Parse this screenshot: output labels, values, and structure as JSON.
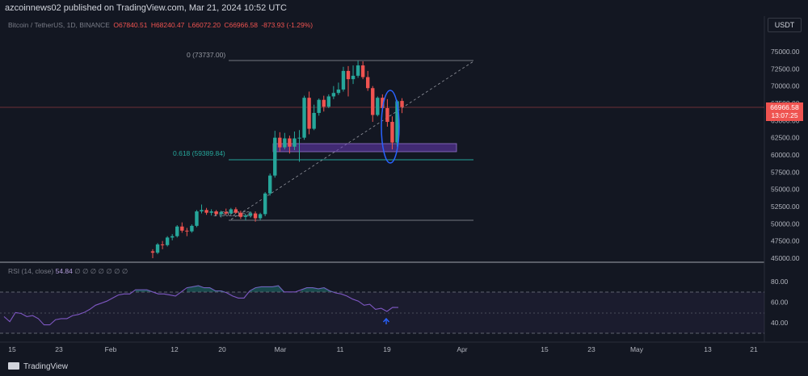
{
  "header": {
    "published": "azcoinnews02 published on TradingView.com, Mar 21, 2024 10:52 UTC"
  },
  "symbol": {
    "name": "Bitcoin / TetherUS, 1D, BINANCE",
    "open": "O67840.51",
    "high": "H68240.47",
    "low": "L66072.20",
    "close": "C66966.58",
    "change": "-873.93 (-1.29%)"
  },
  "currency_label": "USDT",
  "last_price": {
    "value": "66966.58",
    "countdown": "13:07:25"
  },
  "fib": {
    "level_0": "0 (73737.00)",
    "level_0618": "0.618 (59389.84)",
    "level_1": "1 (50221.52)"
  },
  "price_axis": [
    "75000.00",
    "72500.00",
    "70000.00",
    "67500.00",
    "65000.00",
    "62500.00",
    "60000.00",
    "57500.00",
    "55000.00",
    "52500.00",
    "50000.00",
    "47500.00",
    "45000.00"
  ],
  "rsi": {
    "label": "RSI (14, close)",
    "value": "54.84",
    "placeholders": "∅ ∅ ∅ ∅ ∅ ∅ ∅",
    "axis": [
      "80.00",
      "60.00",
      "40.00"
    ],
    "upper": 70,
    "middle": 50,
    "lower": 30
  },
  "time_axis": [
    "15",
    "23",
    "Feb",
    "12",
    "20",
    "Mar",
    "11",
    "19",
    "Apr",
    "15",
    "23",
    "May",
    "13",
    "21"
  ],
  "footer": {
    "brand": "TradingView"
  },
  "colors": {
    "up": "#26a69a",
    "down": "#ef5350",
    "rsi": "#7e57c2",
    "zone": "#673ab7",
    "circle": "#2962ff"
  },
  "chart_data": {
    "type": "candlestick",
    "title": "Bitcoin / TetherUS, 1D, BINANCE",
    "ylim": [
      44500,
      77500
    ],
    "candles": [
      [
        46000,
        46300,
        45000,
        45800
      ],
      [
        45800,
        47200,
        45600,
        47000
      ],
      [
        47000,
        47500,
        46300,
        46900
      ],
      [
        46900,
        48200,
        46700,
        48000
      ],
      [
        48000,
        48500,
        47600,
        48200
      ],
      [
        48200,
        49800,
        48000,
        49600
      ],
      [
        49600,
        50200,
        48700,
        49000
      ],
      [
        49000,
        49400,
        48200,
        48900
      ],
      [
        48900,
        49900,
        48700,
        49700
      ],
      [
        49700,
        52000,
        49500,
        51800
      ],
      [
        51800,
        52800,
        51500,
        52000
      ],
      [
        52000,
        52300,
        51300,
        51600
      ],
      [
        51600,
        52100,
        51200,
        51800
      ],
      [
        51800,
        52000,
        51200,
        51400
      ],
      [
        51400,
        51900,
        51000,
        51700
      ],
      [
        51700,
        52200,
        51300,
        51500
      ],
      [
        51500,
        52300,
        51400,
        52100
      ],
      [
        52100,
        52400,
        51500,
        51600
      ],
      [
        51600,
        51900,
        50700,
        51000
      ],
      [
        51000,
        51400,
        50500,
        51200
      ],
      [
        51200,
        51800,
        50900,
        51500
      ],
      [
        51500,
        51800,
        50300,
        50800
      ],
      [
        50800,
        51600,
        50500,
        51400
      ],
      [
        51400,
        54600,
        51100,
        54400
      ],
      [
        54400,
        57300,
        54100,
        57000
      ],
      [
        57000,
        63500,
        56700,
        62500
      ],
      [
        62500,
        63300,
        60500,
        61100
      ],
      [
        61100,
        63200,
        60800,
        62400
      ],
      [
        62400,
        62800,
        60200,
        61200
      ],
      [
        61200,
        63400,
        60700,
        62400
      ],
      [
        62400,
        63600,
        59000,
        62500
      ],
      [
        62500,
        68600,
        62200,
        68300
      ],
      [
        68300,
        69200,
        63000,
        63800
      ],
      [
        63800,
        67300,
        63600,
        66100
      ],
      [
        66100,
        68200,
        65700,
        68000
      ],
      [
        68000,
        68600,
        66300,
        67000
      ],
      [
        67000,
        68800,
        66800,
        68500
      ],
      [
        68500,
        70000,
        68100,
        69000
      ],
      [
        69000,
        70500,
        68700,
        69500
      ],
      [
        69500,
        72800,
        69200,
        72200
      ],
      [
        72200,
        72900,
        68500,
        71000
      ],
      [
        71000,
        73000,
        70300,
        71500
      ],
      [
        71500,
        73700,
        71200,
        73000
      ],
      [
        73000,
        73600,
        71000,
        71300
      ],
      [
        71300,
        72200,
        69300,
        69700
      ],
      [
        69700,
        70000,
        64800,
        65800
      ],
      [
        65800,
        68500,
        65600,
        68300
      ],
      [
        68300,
        68800,
        66300,
        66800
      ],
      [
        66800,
        68100,
        64100,
        64800
      ],
      [
        64800,
        65600,
        60800,
        61800
      ],
      [
        61800,
        68000,
        61200,
        67800
      ],
      [
        67840.51,
        68240.47,
        66072.2,
        66966.58
      ]
    ],
    "rsi_values": [
      46,
      41,
      50,
      49,
      46,
      47,
      44,
      38,
      38,
      43,
      44,
      44,
      47,
      48,
      50,
      53,
      57,
      59,
      61,
      64,
      67,
      68,
      68,
      72,
      72,
      72,
      70,
      68,
      68,
      67,
      66,
      70,
      74,
      75,
      76,
      74,
      74,
      71,
      71,
      69,
      66,
      64,
      64,
      71,
      74,
      75,
      75,
      75,
      76,
      70,
      70,
      70,
      72,
      74,
      74,
      73,
      74,
      71,
      69,
      68,
      66,
      63,
      61,
      57,
      58,
      53,
      54,
      51,
      55,
      54.84
    ]
  }
}
